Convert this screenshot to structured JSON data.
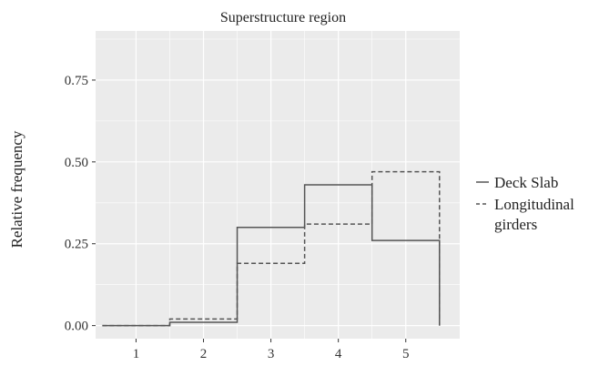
{
  "chart_data": {
    "type": "step",
    "title": "Superstructure region",
    "xlabel": "",
    "ylabel": "Relative frequency",
    "x_categories": [
      "1",
      "2",
      "3",
      "4",
      "5"
    ],
    "xlim": [
      0.5,
      5.5
    ],
    "ylim": [
      0,
      0.75
    ],
    "yticks": [
      "0.00",
      "0.25",
      "0.50",
      "0.75"
    ],
    "grid": true,
    "legend_position": "right",
    "series": [
      {
        "name": "Deck Slab",
        "style": "solid",
        "color": "#555555",
        "values": [
          0.0,
          0.01,
          0.3,
          0.43,
          0.26
        ]
      },
      {
        "name": "Longitudinal girders",
        "style": "dashed",
        "color": "#555555",
        "values": [
          0.0,
          0.02,
          0.19,
          0.31,
          0.47
        ]
      }
    ],
    "legend_labels": [
      {
        "series": 0,
        "lines": [
          "Deck Slab"
        ]
      },
      {
        "series": 1,
        "lines": [
          "Longitudinal",
          "girders"
        ]
      }
    ],
    "panel_background": "#ebebeb",
    "grid_color": "#ffffff"
  }
}
